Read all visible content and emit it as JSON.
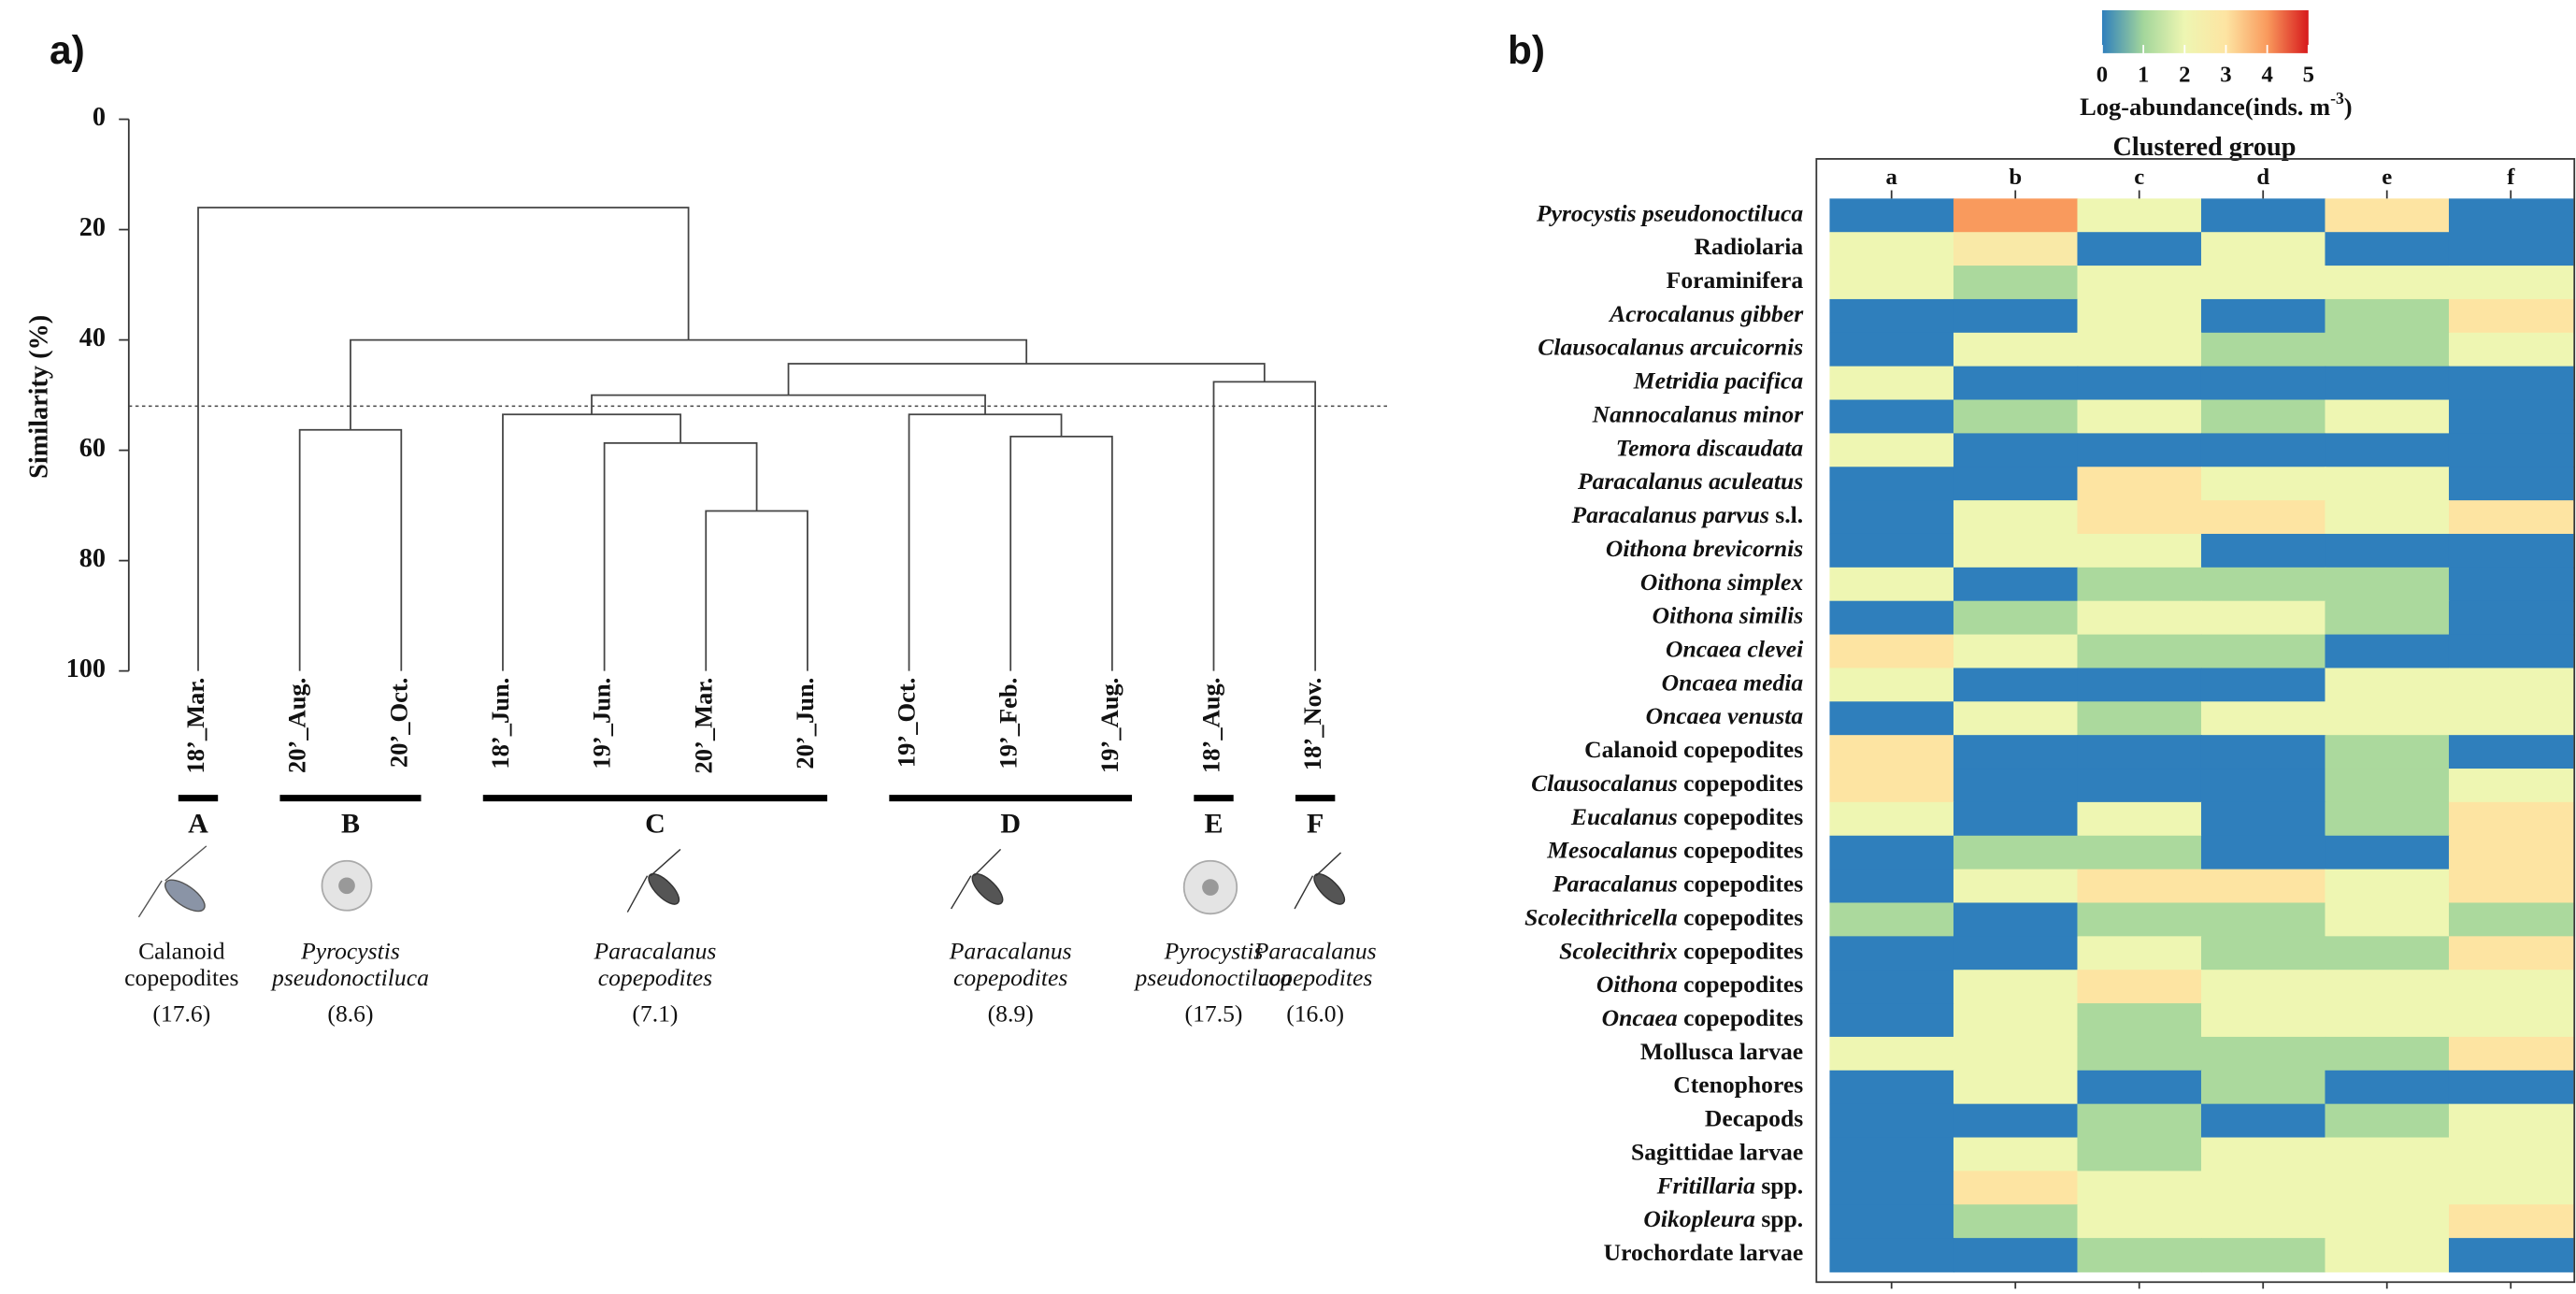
{
  "chart_data": [
    {
      "type": "dendrogram",
      "panel": "a)",
      "ylabel": "Similarity (%)",
      "ylim": [
        0,
        100
      ],
      "y_inverted": true,
      "yticks": [
        0,
        20,
        40,
        60,
        80,
        100
      ],
      "cutoff": 52,
      "tree": {
        "height": 16,
        "children": [
          {
            "label": "18’_Mar.",
            "group": {
              "letter": "A",
              "taxon": [
                "Calanoid",
                "copepodites"
              ],
              "italic": false,
              "note": "(17.6)"
            }
          },
          {
            "height": 40,
            "children": [
              {
                "height": 56.3,
                "children": [
                  {
                    "label": "20’_Aug."
                  },
                  {
                    "label": "20’_Oct."
                  }
                ],
                "group": {
                  "letter": "B",
                  "taxon": [
                    "Pyrocystis",
                    "pseudonoctiluca"
                  ],
                  "italic": true,
                  "note": "(8.6)"
                }
              },
              {
                "height": 44.3,
                "children": [
                  {
                    "height": 50,
                    "children": [
                      {
                        "height": 53.5,
                        "children": [
                          {
                            "label": "18’_Jun."
                          },
                          {
                            "height": 58.7,
                            "children": [
                              {
                                "label": "19’_Jun."
                              },
                              {
                                "height": 71,
                                "children": [
                                  {
                                    "label": "20’_Mar."
                                  },
                                  {
                                    "label": "20’_Jun."
                                  }
                                ]
                              }
                            ]
                          }
                        ],
                        "group": {
                          "letter": "C",
                          "taxon": [
                            "Paracalanus",
                            "copepodites"
                          ],
                          "italic": true,
                          "note": "(7.1)"
                        }
                      },
                      {
                        "height": 53.5,
                        "children": [
                          {
                            "label": "19’_Oct."
                          },
                          {
                            "height": 57.5,
                            "children": [
                              {
                                "label": "19’_Feb."
                              },
                              {
                                "label": "19’_Aug."
                              }
                            ]
                          }
                        ],
                        "group": {
                          "letter": "D",
                          "taxon": [
                            "Paracalanus",
                            "copepodites"
                          ],
                          "italic": true,
                          "note": "(8.9)"
                        }
                      }
                    ]
                  },
                  {
                    "height": 47.6,
                    "children": [
                      {
                        "label": "18’_Aug.",
                        "group": {
                          "letter": "E",
                          "taxon": [
                            "Pyrocystis",
                            "pseudonoctiluca"
                          ],
                          "italic": true,
                          "note": "(17.5)"
                        }
                      },
                      {
                        "label": "18’_Nov.",
                        "group": {
                          "letter": "F",
                          "taxon": [
                            "Paracalanus",
                            "copepodites"
                          ],
                          "italic": true,
                          "note": "(16.0)"
                        }
                      }
                    ]
                  }
                ]
              }
            ]
          }
        ]
      }
    },
    {
      "type": "heatmap",
      "panel": "b)",
      "xlabel": "Clustered group",
      "columns": [
        "a",
        "b",
        "c",
        "d",
        "e",
        "f"
      ],
      "colorbar": {
        "title": [
          {
            "text": "Log-abundance(inds. m"
          },
          {
            "text": "-3",
            "sup": true
          },
          {
            "text": ")"
          }
        ],
        "lim": [
          0,
          5
        ],
        "ticks": [
          0,
          1,
          2,
          3,
          4,
          5
        ],
        "colors": [
          "#2f7fbc",
          "#a3d69b",
          "#eef6b2",
          "#fde4a2",
          "#f99a5d",
          "#d7191c"
        ]
      },
      "rows": [
        {
          "label": [
            {
              "text": "Pyrocystis pseudonoctiluca",
              "italic": true
            }
          ],
          "values": [
            0,
            4,
            2,
            0,
            3,
            0
          ]
        },
        {
          "label": [
            {
              "text": "Radiolaria"
            }
          ],
          "values": [
            2,
            2.7,
            0,
            2,
            0,
            0
          ]
        },
        {
          "label": [
            {
              "text": "Foraminifera"
            }
          ],
          "values": [
            2,
            1.1,
            2,
            2,
            2,
            2
          ]
        },
        {
          "label": [
            {
              "text": "Acrocalanus gibber",
              "italic": true
            }
          ],
          "values": [
            0,
            0,
            2,
            0,
            1.1,
            3
          ]
        },
        {
          "label": [
            {
              "text": "Clausocalanus arcuicornis",
              "italic": true
            }
          ],
          "values": [
            0,
            2,
            2,
            1.1,
            1.1,
            2
          ]
        },
        {
          "label": [
            {
              "text": "Metridia pacifica",
              "italic": true
            }
          ],
          "values": [
            2,
            0,
            0,
            0,
            0,
            0
          ]
        },
        {
          "label": [
            {
              "text": "Nannocalanus minor",
              "italic": true
            }
          ],
          "values": [
            0,
            1.1,
            2,
            1.1,
            2,
            0
          ]
        },
        {
          "label": [
            {
              "text": "Temora discaudata",
              "italic": true
            }
          ],
          "values": [
            2,
            0,
            0,
            0,
            0,
            0
          ]
        },
        {
          "label": [
            {
              "text": "Paracalanus aculeatus",
              "italic": true
            }
          ],
          "values": [
            0,
            0,
            3,
            2,
            2,
            0
          ]
        },
        {
          "label": [
            {
              "text": "Paracalanus parvus",
              "italic": true
            },
            {
              "text": " s.l."
            }
          ],
          "values": [
            0,
            2,
            3,
            3,
            2,
            3
          ]
        },
        {
          "label": [
            {
              "text": "Oithona brevicornis",
              "italic": true
            }
          ],
          "values": [
            0,
            2,
            2,
            0,
            0,
            0
          ]
        },
        {
          "label": [
            {
              "text": "Oithona simplex",
              "italic": true
            }
          ],
          "values": [
            2,
            0,
            1.1,
            1.1,
            1.1,
            0
          ]
        },
        {
          "label": [
            {
              "text": "Oithona similis",
              "italic": true
            }
          ],
          "values": [
            0,
            1.1,
            2,
            2,
            1.1,
            0
          ]
        },
        {
          "label": [
            {
              "text": "Oncaea clevei",
              "italic": true
            }
          ],
          "values": [
            3,
            2,
            1.1,
            1.1,
            0,
            0
          ]
        },
        {
          "label": [
            {
              "text": "Oncaea media",
              "italic": true
            }
          ],
          "values": [
            2,
            0,
            0,
            0,
            2,
            2
          ]
        },
        {
          "label": [
            {
              "text": "Oncaea venusta",
              "italic": true
            }
          ],
          "values": [
            0,
            2,
            1.1,
            2,
            2,
            2
          ]
        },
        {
          "label": [
            {
              "text": "Calanoid copepodites"
            }
          ],
          "values": [
            3,
            0,
            0,
            0,
            1.1,
            0
          ]
        },
        {
          "label": [
            {
              "text": "Clausocalanus",
              "italic": true
            },
            {
              "text": " copepodites"
            }
          ],
          "values": [
            3,
            0,
            0,
            0,
            1.1,
            2
          ]
        },
        {
          "label": [
            {
              "text": "Eucalanus",
              "italic": true
            },
            {
              "text": " copepodites"
            }
          ],
          "values": [
            2,
            0,
            2,
            0,
            1.1,
            3
          ]
        },
        {
          "label": [
            {
              "text": "Mesocalanus",
              "italic": true
            },
            {
              "text": " copepodites"
            }
          ],
          "values": [
            0,
            1.1,
            1.1,
            0,
            0,
            3
          ]
        },
        {
          "label": [
            {
              "text": "Paracalanus",
              "italic": true
            },
            {
              "text": " copepodites"
            }
          ],
          "values": [
            0,
            2,
            3,
            3,
            2,
            3
          ]
        },
        {
          "label": [
            {
              "text": "Scolecithricella",
              "italic": true
            },
            {
              "text": " copepodites"
            }
          ],
          "values": [
            1.1,
            0,
            1.1,
            1.1,
            2,
            1.1
          ]
        },
        {
          "label": [
            {
              "text": "Scolecithrix",
              "italic": true
            },
            {
              "text": " copepodites"
            }
          ],
          "values": [
            0,
            0,
            2,
            1.1,
            1.1,
            3
          ]
        },
        {
          "label": [
            {
              "text": "Oithona",
              "italic": true
            },
            {
              "text": " copepodites"
            }
          ],
          "values": [
            0,
            2,
            3,
            2,
            2,
            2
          ]
        },
        {
          "label": [
            {
              "text": "Oncaea",
              "italic": true
            },
            {
              "text": " copepodites"
            }
          ],
          "values": [
            0,
            2,
            1.1,
            2,
            2,
            2
          ]
        },
        {
          "label": [
            {
              "text": "Mollusca larvae"
            }
          ],
          "values": [
            2,
            2,
            1.1,
            1.1,
            1.1,
            3
          ]
        },
        {
          "label": [
            {
              "text": "Ctenophores"
            }
          ],
          "values": [
            0,
            2,
            0,
            1.1,
            0,
            0
          ]
        },
        {
          "label": [
            {
              "text": "Decapods"
            }
          ],
          "values": [
            0,
            0,
            1.1,
            0,
            1.1,
            2
          ]
        },
        {
          "label": [
            {
              "text": "Sagittidae larvae"
            }
          ],
          "values": [
            0,
            2,
            1.1,
            2,
            2,
            2
          ]
        },
        {
          "label": [
            {
              "text": "Fritillaria",
              "italic": true
            },
            {
              "text": " spp."
            }
          ],
          "values": [
            0,
            3,
            2,
            2,
            2,
            2
          ]
        },
        {
          "label": [
            {
              "text": "Oikopleura",
              "italic": true
            },
            {
              "text": " spp."
            }
          ],
          "values": [
            0,
            1.1,
            2,
            2,
            2,
            3
          ]
        },
        {
          "label": [
            {
              "text": "Urochordate larvae"
            }
          ],
          "values": [
            0,
            0,
            1.1,
            1.1,
            2,
            0
          ]
        }
      ]
    }
  ]
}
